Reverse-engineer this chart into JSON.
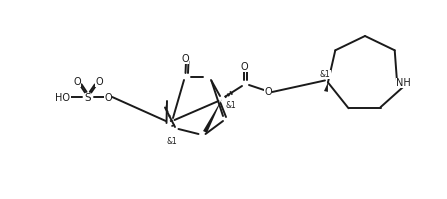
{
  "bg_color": "#ffffff",
  "line_color": "#1a1a1a",
  "line_width": 1.4,
  "font_size": 7.0,
  "fig_width": 4.47,
  "fig_height": 1.99,
  "dpi": 100,
  "xlim": [
    0,
    44.7
  ],
  "ylim": [
    0,
    19.9
  ]
}
